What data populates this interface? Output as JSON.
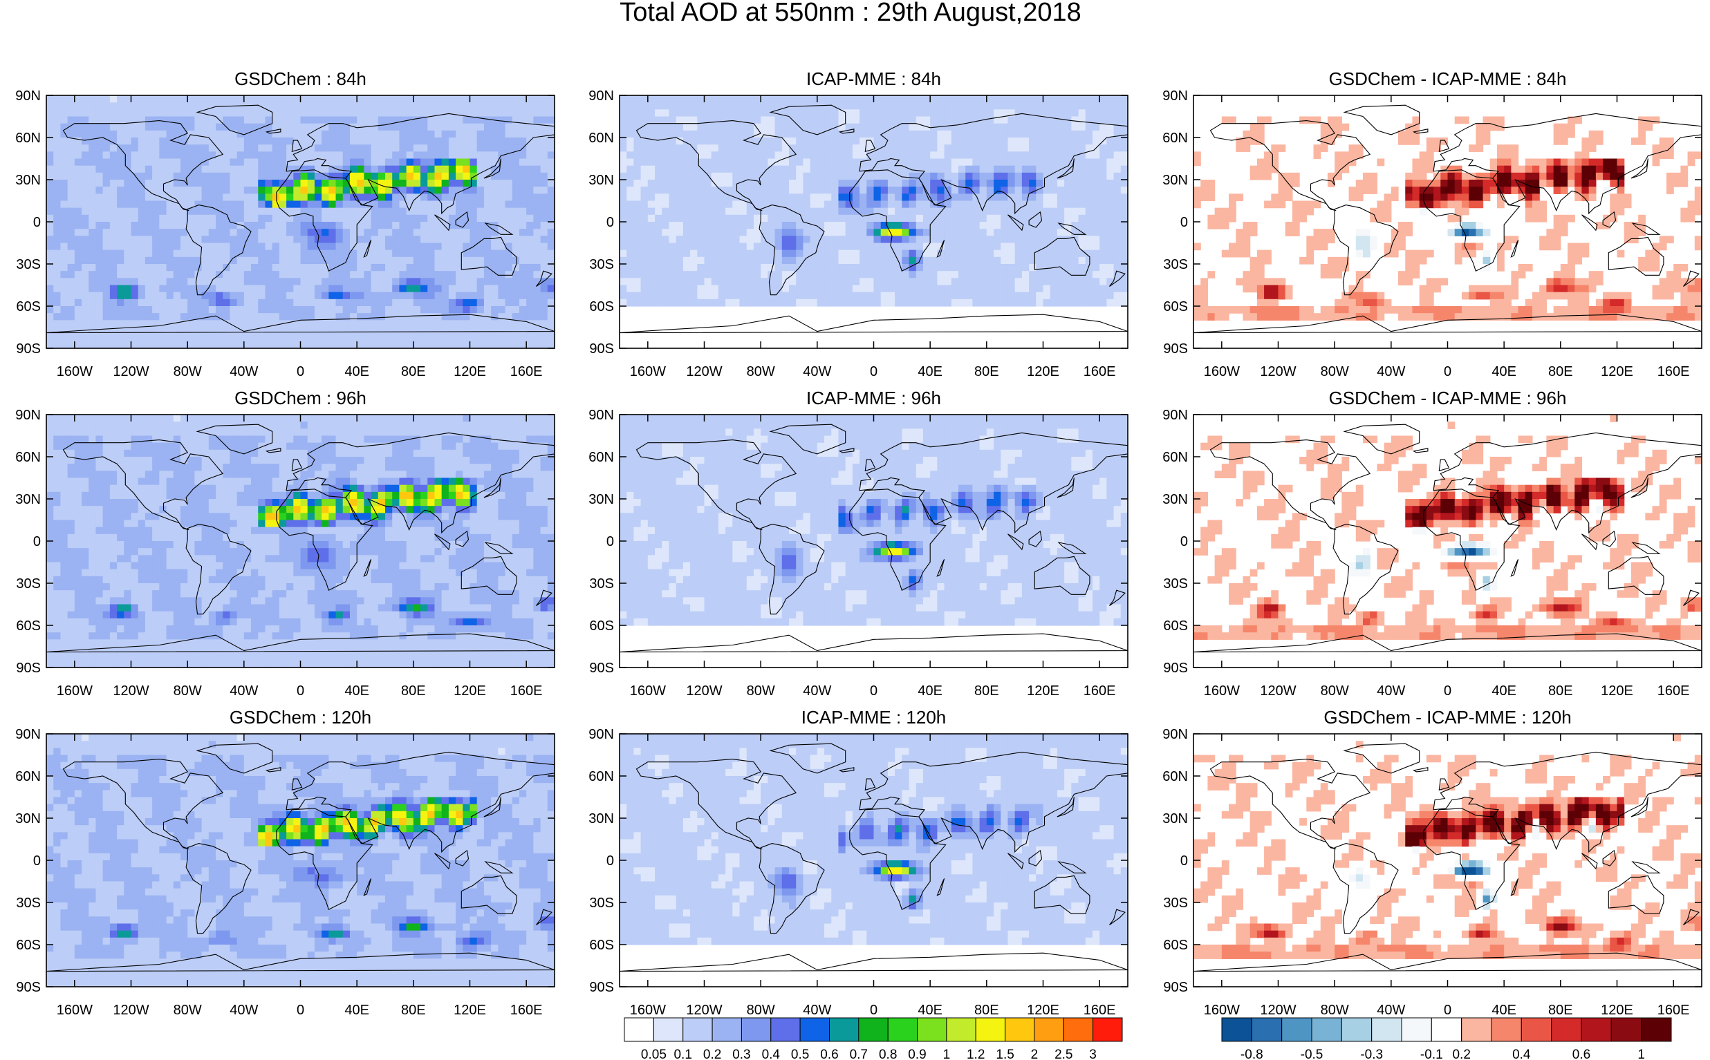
{
  "title": "Total AOD at 550nm : 29th August,2018",
  "panels": [
    {
      "title": "GSDChem : 84h",
      "kind": "model"
    },
    {
      "title": "ICAP-MME : 84h",
      "kind": "icap"
    },
    {
      "title": "GSDChem - ICAP-MME : 84h",
      "kind": "diff"
    },
    {
      "title": "GSDChem : 96h",
      "kind": "model"
    },
    {
      "title": "ICAP-MME : 96h",
      "kind": "icap"
    },
    {
      "title": "GSDChem - ICAP-MME : 96h",
      "kind": "diff"
    },
    {
      "title": "GSDChem : 120h",
      "kind": "model"
    },
    {
      "title": "ICAP-MME : 120h",
      "kind": "icap"
    },
    {
      "title": "GSDChem - ICAP-MME : 120h",
      "kind": "diff"
    }
  ],
  "lat_ticks": [
    "90N",
    "60N",
    "30N",
    "0",
    "30S",
    "60S",
    "90S"
  ],
  "lon_ticks": [
    "160W",
    "120W",
    "80W",
    "40W",
    "0",
    "40E",
    "80E",
    "120E",
    "160E"
  ],
  "aod_colorbar": {
    "labels": [
      "0.05",
      "0.1",
      "0.2",
      "0.3",
      "0.4",
      "0.5",
      "0.6",
      "0.7",
      "0.8",
      "0.9",
      "1",
      "1.2",
      "1.5",
      "2",
      "2.5",
      "3"
    ],
    "colors": [
      "#ffffff",
      "#dde6fb",
      "#bccdf7",
      "#9bb3f2",
      "#7d98ee",
      "#5e6fe9",
      "#0f63e6",
      "#0a9a9a",
      "#10b31c",
      "#2ad21e",
      "#7be01d",
      "#c2ec2b",
      "#f5f411",
      "#ffc80e",
      "#ff9e10",
      "#ff6d0c",
      "#ff1c0a"
    ]
  },
  "diff_colorbar": {
    "labels": [
      "-0.8",
      "-0.5",
      "-0.3",
      "-0.1",
      "0.2",
      "0.4",
      "0.6",
      "1"
    ],
    "colors": [
      "#0b5396",
      "#2a6fb0",
      "#4f95c4",
      "#78b3d5",
      "#a7d0e4",
      "#d2e6f1",
      "#f4f8fb",
      "#ffffff",
      "#fbb6a1",
      "#f5866c",
      "#ea5646",
      "#d42a2a",
      "#b2151c",
      "#8a0b12",
      "#5c0006"
    ]
  }
}
